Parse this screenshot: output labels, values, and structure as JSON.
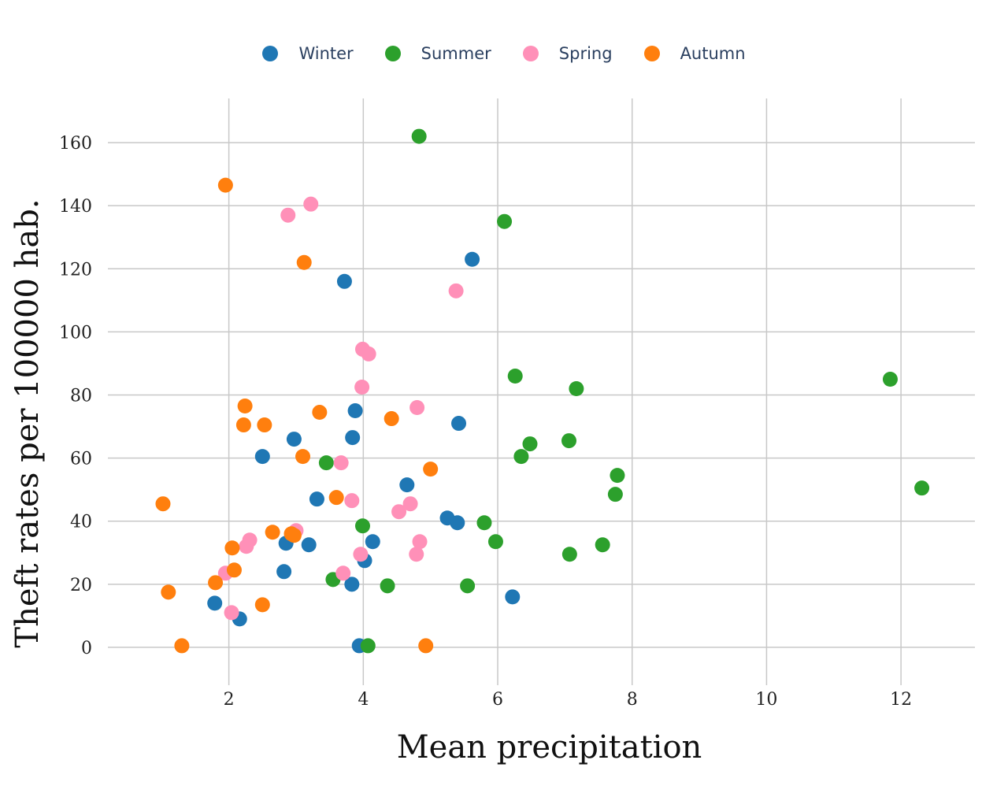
{
  "chart_data": {
    "type": "scatter",
    "title": "",
    "xlabel": "Mean precipitation",
    "ylabel": "Theft rates per 100000 hab.",
    "xlim": [
      0.2,
      13.1
    ],
    "ylim": [
      -12,
      174
    ],
    "xticks": [
      2,
      4,
      6,
      8,
      10,
      12
    ],
    "yticks": [
      0,
      20,
      40,
      60,
      80,
      100,
      120,
      140,
      160
    ],
    "grid": true,
    "legend_position": "top-center",
    "series": [
      {
        "name": "Winter",
        "color": "#1f77b4",
        "points": [
          [
            3.72,
            116
          ],
          [
            5.62,
            123
          ],
          [
            3.88,
            75
          ],
          [
            5.42,
            71
          ],
          [
            3.84,
            66.5
          ],
          [
            2.97,
            66
          ],
          [
            2.5,
            60.5
          ],
          [
            4.65,
            51.5
          ],
          [
            3.31,
            47
          ],
          [
            5.25,
            41
          ],
          [
            5.4,
            39.5
          ],
          [
            2.85,
            33
          ],
          [
            3.19,
            32.5
          ],
          [
            4.14,
            33.5
          ],
          [
            4.02,
            27.5
          ],
          [
            2.82,
            24
          ],
          [
            3.83,
            20
          ],
          [
            1.79,
            14
          ],
          [
            2.16,
            9
          ],
          [
            6.22,
            16
          ],
          [
            3.94,
            0.5
          ]
        ]
      },
      {
        "name": "Summer",
        "color": "#2ca02c",
        "points": [
          [
            4.83,
            162
          ],
          [
            6.1,
            135
          ],
          [
            6.26,
            86
          ],
          [
            7.17,
            82
          ],
          [
            11.84,
            85
          ],
          [
            7.06,
            65.5
          ],
          [
            6.48,
            64.5
          ],
          [
            6.35,
            60.5
          ],
          [
            3.45,
            58.5
          ],
          [
            7.78,
            54.5
          ],
          [
            7.75,
            48.5
          ],
          [
            12.31,
            50.5
          ],
          [
            3.99,
            38.5
          ],
          [
            5.8,
            39.5
          ],
          [
            5.97,
            33.5
          ],
          [
            7.56,
            32.5
          ],
          [
            7.07,
            29.5
          ],
          [
            3.55,
            21.5
          ],
          [
            4.36,
            19.5
          ],
          [
            5.55,
            19.5
          ],
          [
            4.07,
            0.5
          ]
        ]
      },
      {
        "name": "Spring",
        "color": "#ff90b8",
        "points": [
          [
            2.88,
            137
          ],
          [
            3.22,
            140.5
          ],
          [
            5.38,
            113
          ],
          [
            3.99,
            94.5
          ],
          [
            4.08,
            93
          ],
          [
            3.98,
            82.5
          ],
          [
            4.8,
            76
          ],
          [
            3.67,
            58.5
          ],
          [
            3.83,
            46.5
          ],
          [
            4.7,
            45.5
          ],
          [
            4.53,
            43
          ],
          [
            3.0,
            37
          ],
          [
            2.31,
            34
          ],
          [
            2.26,
            32
          ],
          [
            4.84,
            33.5
          ],
          [
            3.96,
            29.5
          ],
          [
            4.79,
            29.5
          ],
          [
            1.95,
            23.5
          ],
          [
            3.7,
            23.5
          ],
          [
            2.04,
            11
          ]
        ]
      },
      {
        "name": "Autumn",
        "color": "#ff7f0e",
        "points": [
          [
            1.95,
            146.5
          ],
          [
            3.12,
            122
          ],
          [
            2.24,
            76.5
          ],
          [
            3.35,
            74.5
          ],
          [
            4.42,
            72.5
          ],
          [
            2.22,
            70.5
          ],
          [
            2.53,
            70.5
          ],
          [
            3.1,
            60.5
          ],
          [
            5.0,
            56.5
          ],
          [
            3.6,
            47.5
          ],
          [
            1.02,
            45.5
          ],
          [
            2.65,
            36.5
          ],
          [
            2.93,
            36
          ],
          [
            2.97,
            35.5
          ],
          [
            2.05,
            31.5
          ],
          [
            2.08,
            24.5
          ],
          [
            1.8,
            20.5
          ],
          [
            1.1,
            17.5
          ],
          [
            2.5,
            13.5
          ],
          [
            1.3,
            0.5
          ],
          [
            4.93,
            0.5
          ]
        ]
      }
    ]
  }
}
